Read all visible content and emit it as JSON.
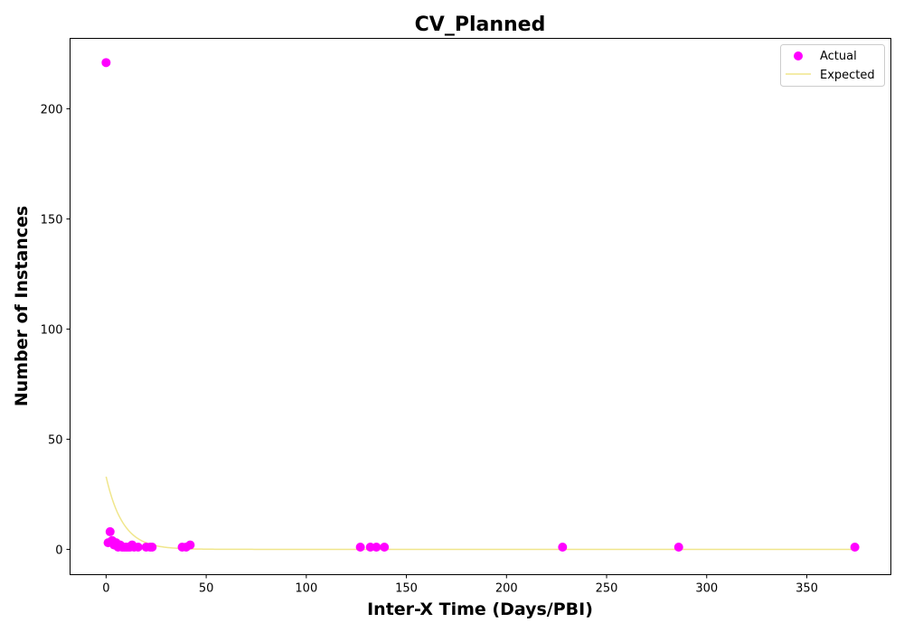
{
  "chart_data": {
    "type": "scatter",
    "title": "CV_Planned",
    "xlabel": "Inter-X Time (Days/PBI)",
    "ylabel": "Number of Instances",
    "xlim": [
      -18,
      392
    ],
    "ylim": [
      -11.5,
      232
    ],
    "xticks": [
      0,
      50,
      100,
      150,
      200,
      250,
      300,
      350
    ],
    "yticks": [
      0,
      50,
      100,
      150,
      200
    ],
    "grid": false,
    "legend_position": "top-right",
    "colors": {
      "actual": "#ff00ff",
      "expected": "#f0e68c"
    },
    "series": [
      {
        "name": "Actual",
        "kind": "scatter",
        "x": [
          0,
          1,
          2,
          3,
          4,
          5,
          6,
          7,
          8,
          9,
          10,
          11,
          12,
          13,
          14,
          16,
          20,
          22,
          23,
          38,
          40,
          42,
          127,
          132,
          135,
          139,
          228,
          286,
          374
        ],
        "y": [
          221,
          3,
          8,
          4,
          2,
          3,
          1,
          2,
          1,
          1,
          1,
          1,
          1,
          2,
          1,
          1,
          1,
          1,
          1,
          1,
          1,
          2,
          1,
          1,
          1,
          1,
          1,
          1,
          1
        ]
      },
      {
        "name": "Expected",
        "kind": "line",
        "model": "exponential",
        "amplitude": 33,
        "rate": 0.12,
        "x_range": [
          0,
          374
        ]
      }
    ]
  }
}
